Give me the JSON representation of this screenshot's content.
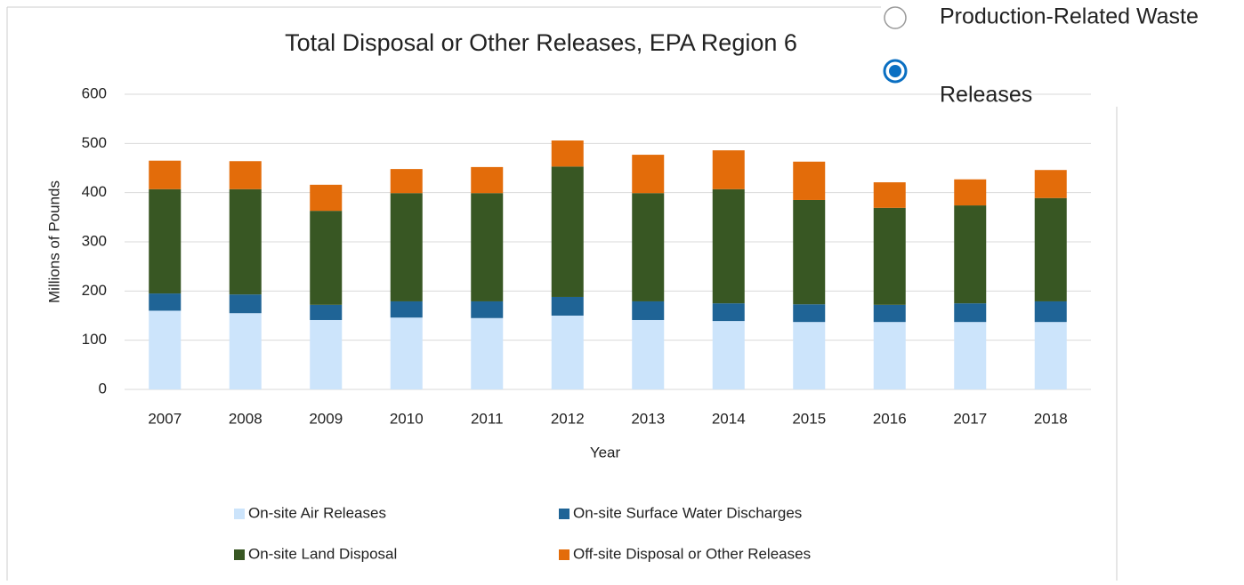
{
  "chart_data": {
    "type": "bar",
    "stacked": true,
    "title": "Total Disposal or Other Releases, EPA Region 6",
    "x_label": "Year",
    "y_label": "Millions of Pounds",
    "categories": [
      "2007",
      "2008",
      "2009",
      "2010",
      "2011",
      "2012",
      "2013",
      "2014",
      "2015",
      "2016",
      "2017",
      "2018"
    ],
    "series": [
      {
        "name": "On-site Air Releases",
        "color": "#cce4fb",
        "values": [
          160,
          155,
          141,
          146,
          145,
          150,
          141,
          139,
          137,
          137,
          137,
          137
        ]
      },
      {
        "name": "On-site Surface Water Discharges",
        "color": "#1f6496",
        "values": [
          35,
          38,
          31,
          33,
          34,
          38,
          38,
          36,
          36,
          35,
          38,
          42
        ]
      },
      {
        "name": "On-site Land Disposal",
        "color": "#385723",
        "values": [
          212,
          214,
          191,
          220,
          220,
          265,
          220,
          232,
          212,
          197,
          199,
          210
        ]
      },
      {
        "name": "Off-site Disposal or Other Releases",
        "color": "#e36c0a",
        "values": [
          58,
          57,
          53,
          49,
          53,
          53,
          78,
          79,
          78,
          52,
          53,
          57
        ]
      }
    ],
    "ylim": [
      0,
      600
    ],
    "yticks": [
      0,
      100,
      200,
      300,
      400,
      500,
      600
    ],
    "grid": true
  },
  "radio": {
    "options": [
      "Production-Related Waste",
      "Releases"
    ],
    "selected": 1
  }
}
